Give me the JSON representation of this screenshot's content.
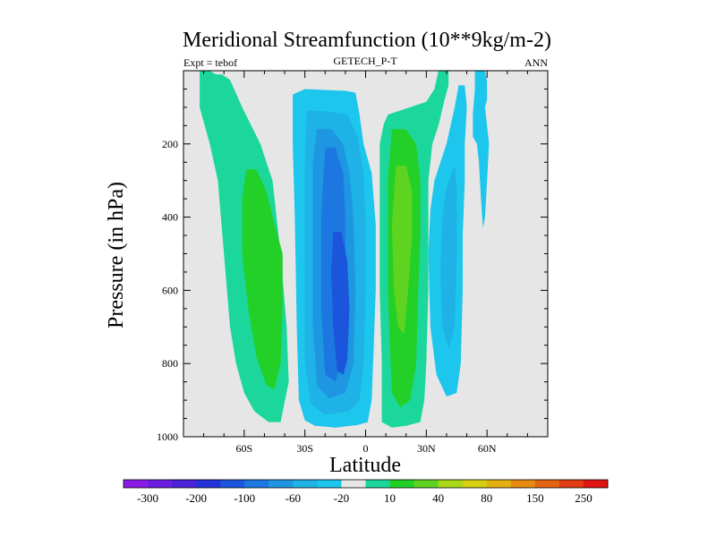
{
  "chart_data": {
    "type": "contour",
    "title": "Meridional Streamfunction (10**9kg/m-2)",
    "left_label": "Expt = tebof",
    "center_label": "GETECH_P-T",
    "right_label": "ANN",
    "xlabel": "Latitude",
    "ylabel": "Pressure (in hPa)",
    "xlim": [
      -90,
      90
    ],
    "ylim": [
      1000,
      0
    ],
    "x_ticks": [
      {
        "value": -60,
        "label": "60S"
      },
      {
        "value": -30,
        "label": "30S"
      },
      {
        "value": 0,
        "label": "0"
      },
      {
        "value": 30,
        "label": "30N"
      },
      {
        "value": 60,
        "label": "60N"
      }
    ],
    "y_ticks": [
      {
        "value": 200,
        "label": "200"
      },
      {
        "value": 400,
        "label": "400"
      },
      {
        "value": 600,
        "label": "600"
      },
      {
        "value": 800,
        "label": "800"
      },
      {
        "value": 1000,
        "label": "1000"
      }
    ],
    "background_color": "#e6e6e6",
    "colorbar": {
      "colors": [
        "#8a1ce6",
        "#6a1ee0",
        "#4b22d8",
        "#2432da",
        "#1a55dc",
        "#1c78e0",
        "#1f96e2",
        "#1eb2e6",
        "#1cc6ec",
        "#e6e6e6",
        "#1cd79c",
        "#22d028",
        "#5ed420",
        "#a8d818",
        "#d6d012",
        "#e6b010",
        "#e68a10",
        "#e46412",
        "#e23c12",
        "#e01410"
      ],
      "labels": [
        "-300",
        "-200",
        "-100",
        "-60",
        "-20",
        "10",
        "40",
        "80",
        "150",
        "250"
      ]
    },
    "cells": [
      {
        "name": "sh-outer-cell",
        "sign": "positive",
        "points": [
          [
            -82,
            0
          ],
          [
            -77,
            0
          ],
          [
            -74,
            10
          ],
          [
            -71,
            10
          ],
          [
            -67,
            25
          ],
          [
            -61,
            100
          ],
          [
            -52,
            200
          ],
          [
            -46,
            300
          ],
          [
            -42,
            500
          ],
          [
            -39,
            700
          ],
          [
            -38,
            850
          ],
          [
            -42,
            960
          ],
          [
            -48,
            960
          ],
          [
            -55,
            930
          ],
          [
            -60,
            880
          ],
          [
            -64,
            800
          ],
          [
            -67,
            700
          ],
          [
            -70,
            500
          ],
          [
            -73,
            300
          ],
          [
            -77,
            200
          ],
          [
            -82,
            100
          ],
          [
            -82,
            30
          ]
        ],
        "level": 1
      },
      {
        "name": "sh-outer-core",
        "sign": "positive",
        "points": [
          [
            -59,
            270
          ],
          [
            -54,
            270
          ],
          [
            -49,
            330
          ],
          [
            -45,
            420
          ],
          [
            -41,
            500
          ],
          [
            -41,
            650
          ],
          [
            -42,
            800
          ],
          [
            -45,
            870
          ],
          [
            -49,
            860
          ],
          [
            -54,
            780
          ],
          [
            -58,
            650
          ],
          [
            -61,
            500
          ],
          [
            -61,
            350
          ]
        ],
        "level": 2
      },
      {
        "name": "tropical-south-cell",
        "sign": "negative",
        "points": [
          [
            -36,
            65
          ],
          [
            -30,
            50
          ],
          [
            -10,
            55
          ],
          [
            -5,
            60
          ],
          [
            -3,
            120
          ],
          [
            -1,
            200
          ],
          [
            3,
            280
          ],
          [
            5,
            420
          ],
          [
            5,
            600
          ],
          [
            4,
            760
          ],
          [
            3,
            900
          ],
          [
            1,
            960
          ],
          [
            -4,
            968
          ],
          [
            -15,
            975
          ],
          [
            -25,
            970
          ],
          [
            -30,
            955
          ],
          [
            -33,
            900
          ],
          [
            -34,
            700
          ],
          [
            -35,
            400
          ],
          [
            -36,
            200
          ]
        ],
        "level": -1
      },
      {
        "name": "tropical-south-level2",
        "sign": "negative",
        "points": [
          [
            -29,
            110
          ],
          [
            -21,
            110
          ],
          [
            -9,
            120
          ],
          [
            -4,
            180
          ],
          [
            -1,
            280
          ],
          [
            0,
            420
          ],
          [
            0,
            600
          ],
          [
            -1,
            800
          ],
          [
            -3,
            900
          ],
          [
            -8,
            930
          ],
          [
            -20,
            940
          ],
          [
            -27,
            910
          ],
          [
            -30,
            800
          ],
          [
            -30,
            500
          ],
          [
            -30,
            250
          ]
        ],
        "level": -2
      },
      {
        "name": "tropical-south-level3",
        "sign": "negative",
        "points": [
          [
            -24,
            160
          ],
          [
            -17,
            160
          ],
          [
            -11,
            200
          ],
          [
            -8,
            280
          ],
          [
            -6,
            400
          ],
          [
            -5,
            600
          ],
          [
            -6,
            800
          ],
          [
            -10,
            880
          ],
          [
            -18,
            895
          ],
          [
            -24,
            860
          ],
          [
            -26,
            700
          ],
          [
            -26,
            450
          ],
          [
            -26,
            250
          ]
        ],
        "level": -3
      },
      {
        "name": "tropical-south-level4",
        "sign": "negative",
        "points": [
          [
            -20,
            210
          ],
          [
            -15,
            210
          ],
          [
            -11,
            280
          ],
          [
            -10,
            400
          ],
          [
            -10,
            600
          ],
          [
            -11,
            780
          ],
          [
            -15,
            850
          ],
          [
            -20,
            830
          ],
          [
            -22,
            650
          ],
          [
            -22,
            400
          ]
        ],
        "level": -4
      },
      {
        "name": "tropical-south-core",
        "sign": "negative",
        "points": [
          [
            -16,
            440
          ],
          [
            -12,
            440
          ],
          [
            -9,
            520
          ],
          [
            -8,
            650
          ],
          [
            -9,
            790
          ],
          [
            -11,
            830
          ],
          [
            -14,
            820
          ],
          [
            -16,
            700
          ],
          [
            -17,
            550
          ]
        ],
        "level": -5
      },
      {
        "name": "tropical-north-cell",
        "sign": "positive",
        "points": [
          [
            9,
            145
          ],
          [
            11,
            120
          ],
          [
            30,
            85
          ],
          [
            34,
            50
          ],
          [
            36,
            0
          ],
          [
            41,
            0
          ],
          [
            41,
            40
          ],
          [
            39,
            80
          ],
          [
            36,
            150
          ],
          [
            33,
            200
          ],
          [
            31,
            300
          ],
          [
            31,
            400
          ],
          [
            31,
            600
          ],
          [
            30,
            800
          ],
          [
            29,
            900
          ],
          [
            27,
            960
          ],
          [
            20,
            970
          ],
          [
            13,
            975
          ],
          [
            8,
            960
          ],
          [
            8,
            800
          ],
          [
            7,
            600
          ],
          [
            7,
            350
          ],
          [
            7,
            200
          ]
        ],
        "level": 1
      },
      {
        "name": "tropical-north-core",
        "sign": "positive",
        "points": [
          [
            13,
            160
          ],
          [
            20,
            160
          ],
          [
            25,
            200
          ],
          [
            27,
            300
          ],
          [
            27,
            450
          ],
          [
            26,
            600
          ],
          [
            25,
            800
          ],
          [
            22,
            900
          ],
          [
            17,
            920
          ],
          [
            13,
            880
          ],
          [
            12,
            750
          ],
          [
            11,
            600
          ],
          [
            11,
            300
          ]
        ],
        "level": 2
      },
      {
        "name": "tropical-north-inner",
        "sign": "positive",
        "points": [
          [
            15,
            260
          ],
          [
            20,
            260
          ],
          [
            23,
            330
          ],
          [
            23,
            450
          ],
          [
            21,
            600
          ],
          [
            19,
            720
          ],
          [
            16,
            700
          ],
          [
            14,
            600
          ],
          [
            13,
            420
          ]
        ],
        "level": 3
      },
      {
        "name": "nh-ferrel-cell",
        "sign": "negative",
        "points": [
          [
            34,
            300
          ],
          [
            40,
            200
          ],
          [
            44,
            100
          ],
          [
            46,
            40
          ],
          [
            49,
            40
          ],
          [
            50,
            100
          ],
          [
            49,
            200
          ],
          [
            49,
            300
          ],
          [
            48,
            450
          ],
          [
            48,
            600
          ],
          [
            47,
            800
          ],
          [
            45,
            880
          ],
          [
            40,
            890
          ],
          [
            35,
            830
          ],
          [
            32,
            700
          ],
          [
            31,
            500
          ],
          [
            32,
            380
          ]
        ],
        "level": -1
      },
      {
        "name": "nh-ferrel-core",
        "sign": "negative",
        "points": [
          [
            40,
            320
          ],
          [
            44,
            260
          ],
          [
            45,
            330
          ],
          [
            45,
            500
          ],
          [
            44,
            700
          ],
          [
            41,
            760
          ],
          [
            38,
            700
          ],
          [
            37,
            550
          ],
          [
            38,
            400
          ]
        ],
        "level": -2
      },
      {
        "name": "nh-polar-cell",
        "sign": "negative",
        "points": [
          [
            54,
            0
          ],
          [
            59,
            0
          ],
          [
            60,
            30
          ],
          [
            60,
            80
          ],
          [
            59,
            100
          ],
          [
            61,
            200
          ],
          [
            60,
            300
          ],
          [
            59,
            400
          ],
          [
            58,
            430
          ],
          [
            57,
            350
          ],
          [
            56,
            250
          ],
          [
            55,
            200
          ],
          [
            53,
            180
          ],
          [
            53,
            120
          ],
          [
            54,
            50
          ]
        ],
        "level": -1
      }
    ]
  }
}
